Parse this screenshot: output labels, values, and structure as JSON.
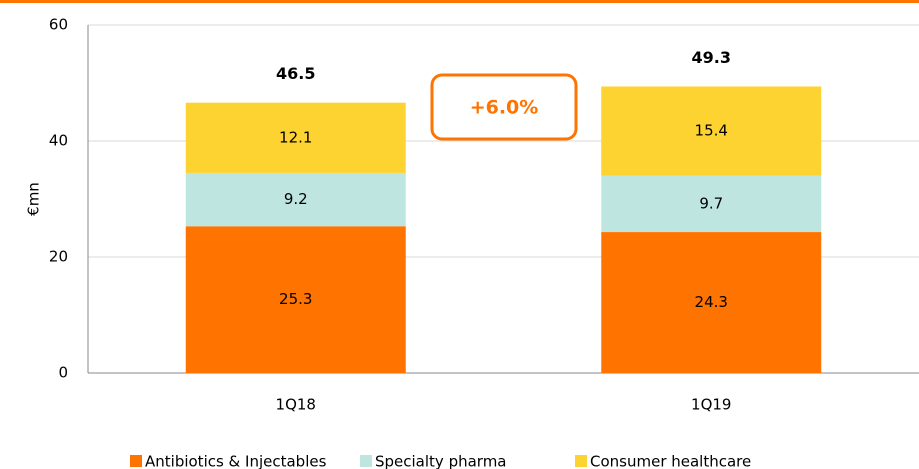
{
  "chart_data": {
    "type": "stacked_bar",
    "y_label": "€mn",
    "categories": [
      "1Q18",
      "1Q19"
    ],
    "series": [
      {
        "name": "Antibiotics & Injectables",
        "color": "#ff7300",
        "values": [
          25.3,
          24.3
        ]
      },
      {
        "name": "Specialty pharma",
        "color": "#bfe5e0",
        "values": [
          9.2,
          9.7
        ]
      },
      {
        "name": "Consumer healthcare",
        "color": "#fdd331",
        "values": [
          12.1,
          15.4
        ]
      }
    ],
    "totals": [
      46.5,
      49.3
    ],
    "annotation": "+6.0%",
    "ylim": [
      0,
      60
    ],
    "yticks": [
      0,
      20,
      40,
      60
    ],
    "grid": true,
    "legend": "bottom"
  }
}
